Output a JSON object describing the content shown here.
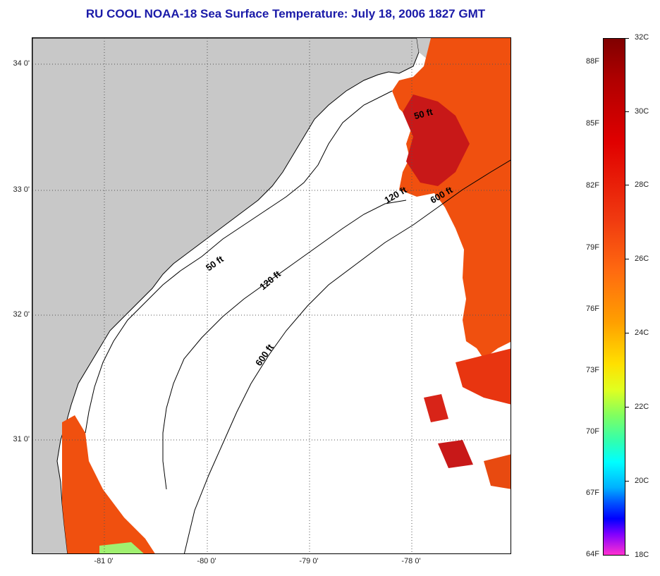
{
  "title": "RU COOL  NOAA-18  Sea Surface Temperature:  July 18, 2006 1827 GMT",
  "map": {
    "lat_labels": [
      "34 0'",
      "33 0'",
      "32 0'",
      "31 0'"
    ],
    "lon_labels": [
      "-81 0'",
      "-80 0'",
      "-79 0'",
      "-78 0'"
    ],
    "contours": [
      "50 ft",
      "120 ft",
      "600 ft",
      "50 ft",
      "120 ft",
      "600 ft"
    ]
  },
  "colorbar": {
    "fahrenheit": [
      "88F",
      "85F",
      "82F",
      "79F",
      "76F",
      "73F",
      "70F",
      "67F",
      "64F"
    ],
    "celsius": [
      "32C",
      "30C",
      "28C",
      "26C",
      "24C",
      "22C",
      "20C",
      "18C"
    ]
  },
  "colors": {
    "land": "#c8c8c8",
    "sea_warm": "#ee3a0e",
    "sea_hot": "#c01010",
    "title": "#1a1aa8"
  }
}
